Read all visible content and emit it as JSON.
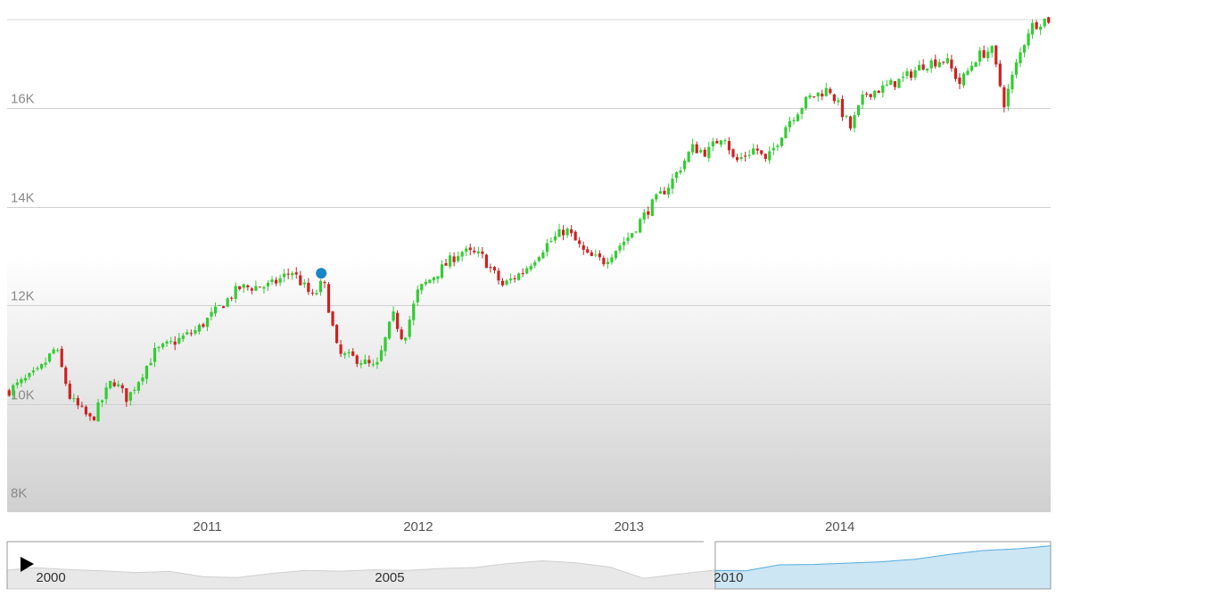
{
  "chart_data": {
    "type": "candlestick",
    "title": "",
    "xlabel": "",
    "ylabel": "",
    "ylim": [
      7800,
      17800
    ],
    "y_ticks": [
      8000,
      10000,
      12000,
      14000,
      16000
    ],
    "y_tick_labels": [
      "8K",
      "10K",
      "12K",
      "14K",
      "16K"
    ],
    "x_range": [
      2010.05,
      2015.0
    ],
    "x_ticks": [
      2011,
      2012,
      2013,
      2014
    ],
    "x_tick_labels": [
      "2011",
      "2012",
      "2013",
      "2014"
    ],
    "grid": true,
    "colors": {
      "up": "#33cc33",
      "down": "#cc2222",
      "marker": "#1a86c7",
      "navigator_fill": "#cce6f4",
      "navigator_line": "#5aaee0"
    },
    "close_path": [
      [
        2010.05,
        10250
      ],
      [
        2010.2,
        10650
      ],
      [
        2010.28,
        11150
      ],
      [
        2010.35,
        10100
      ],
      [
        2010.45,
        9650
      ],
      [
        2010.55,
        10500
      ],
      [
        2010.62,
        10100
      ],
      [
        2010.75,
        11050
      ],
      [
        2010.95,
        11500
      ],
      [
        2011.15,
        12350
      ],
      [
        2011.3,
        12400
      ],
      [
        2011.4,
        12700
      ],
      [
        2011.5,
        12150
      ],
      [
        2011.55,
        12500
      ],
      [
        2011.62,
        11000
      ],
      [
        2011.72,
        10900
      ],
      [
        2011.8,
        10700
      ],
      [
        2011.88,
        11800
      ],
      [
        2011.93,
        11300
      ],
      [
        2012.0,
        12300
      ],
      [
        2012.15,
        12900
      ],
      [
        2012.2,
        13100
      ],
      [
        2012.3,
        13000
      ],
      [
        2012.4,
        12400
      ],
      [
        2012.5,
        12700
      ],
      [
        2012.55,
        12950
      ],
      [
        2012.6,
        13200
      ],
      [
        2012.7,
        13550
      ],
      [
        2012.8,
        13000
      ],
      [
        2012.88,
        12900
      ],
      [
        2012.95,
        13200
      ],
      [
        2013.0,
        13400
      ],
      [
        2013.1,
        14000
      ],
      [
        2013.2,
        14500
      ],
      [
        2013.3,
        15200
      ],
      [
        2013.37,
        15100
      ],
      [
        2013.45,
        15500
      ],
      [
        2013.5,
        14900
      ],
      [
        2013.6,
        15200
      ],
      [
        2013.65,
        14900
      ],
      [
        2013.75,
        15700
      ],
      [
        2013.85,
        16200
      ],
      [
        2013.95,
        16400
      ],
      [
        2014.05,
        15600
      ],
      [
        2014.12,
        16300
      ],
      [
        2014.2,
        16400
      ],
      [
        2014.3,
        16600
      ],
      [
        2014.4,
        16900
      ],
      [
        2014.5,
        17000
      ],
      [
        2014.57,
        16500
      ],
      [
        2014.65,
        17050
      ],
      [
        2014.72,
        17200
      ],
      [
        2014.78,
        16100
      ],
      [
        2014.83,
        16800
      ],
      [
        2014.9,
        17650
      ],
      [
        2014.97,
        17800
      ]
    ],
    "marker": {
      "x": 2011.54,
      "y": 12650
    },
    "navigator": {
      "labels": [
        "2000",
        "2005",
        "2010"
      ],
      "label_years": [
        2000,
        2005,
        2010
      ],
      "x_range": [
        1999.6,
        2015.0
      ],
      "selection": [
        2010.05,
        2015.0
      ],
      "series": [
        [
          1999.6,
          10500
        ],
        [
          2000.0,
          11200
        ],
        [
          2000.5,
          10700
        ],
        [
          2001.0,
          10300
        ],
        [
          2001.5,
          9800
        ],
        [
          2002.0,
          10100
        ],
        [
          2002.5,
          8500
        ],
        [
          2003.0,
          8300
        ],
        [
          2003.5,
          9500
        ],
        [
          2004.0,
          10400
        ],
        [
          2004.5,
          10200
        ],
        [
          2005.0,
          10600
        ],
        [
          2005.5,
          10400
        ],
        [
          2006.0,
          11000
        ],
        [
          2006.5,
          11300
        ],
        [
          2007.0,
          12500
        ],
        [
          2007.5,
          13300
        ],
        [
          2008.0,
          12700
        ],
        [
          2008.5,
          11400
        ],
        [
          2009.0,
          8000
        ],
        [
          2009.5,
          9300
        ],
        [
          2010.0,
          10400
        ],
        [
          2010.5,
          10300
        ],
        [
          2011.0,
          12100
        ],
        [
          2011.5,
          12200
        ],
        [
          2012.0,
          12600
        ],
        [
          2012.5,
          13000
        ],
        [
          2013.0,
          13800
        ],
        [
          2013.5,
          15200
        ],
        [
          2014.0,
          16400
        ],
        [
          2014.5,
          16900
        ],
        [
          2015.0,
          17800
        ]
      ]
    }
  }
}
